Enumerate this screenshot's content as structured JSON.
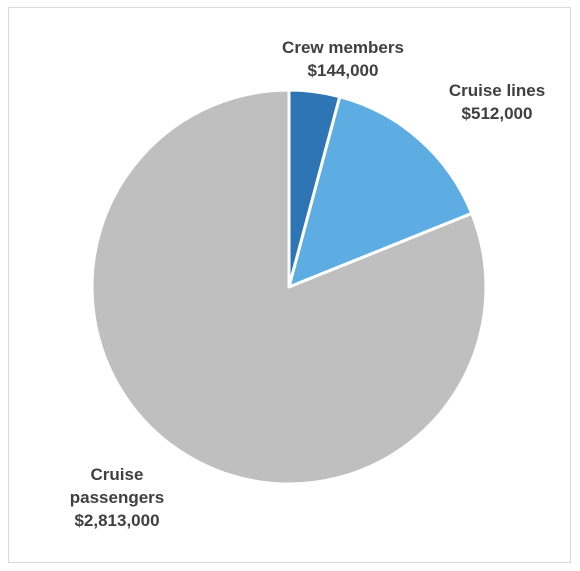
{
  "chart_data": {
    "type": "pie",
    "title": "",
    "slices": [
      {
        "name": "Crew members",
        "value": 144000,
        "value_label": "$144,000",
        "color": "#2e75b6"
      },
      {
        "name": "Cruise lines",
        "value": 512000,
        "value_label": "$512,000",
        "color": "#5dade2"
      },
      {
        "name": "Cruise passengers",
        "value": 2813000,
        "value_label": "$2,813,000",
        "color": "#bfbfbf"
      }
    ],
    "label_lines": {
      "crew": [
        "Crew members",
        "$144,000"
      ],
      "lines": [
        "Cruise lines",
        "$512,000"
      ],
      "passengers": [
        "Cruise",
        "passengers",
        "$2,813,000"
      ]
    },
    "start_angle_deg": 0,
    "direction": "clockwise",
    "slice_border_color": "#ffffff",
    "legend": "none",
    "label_color": "#404040"
  }
}
